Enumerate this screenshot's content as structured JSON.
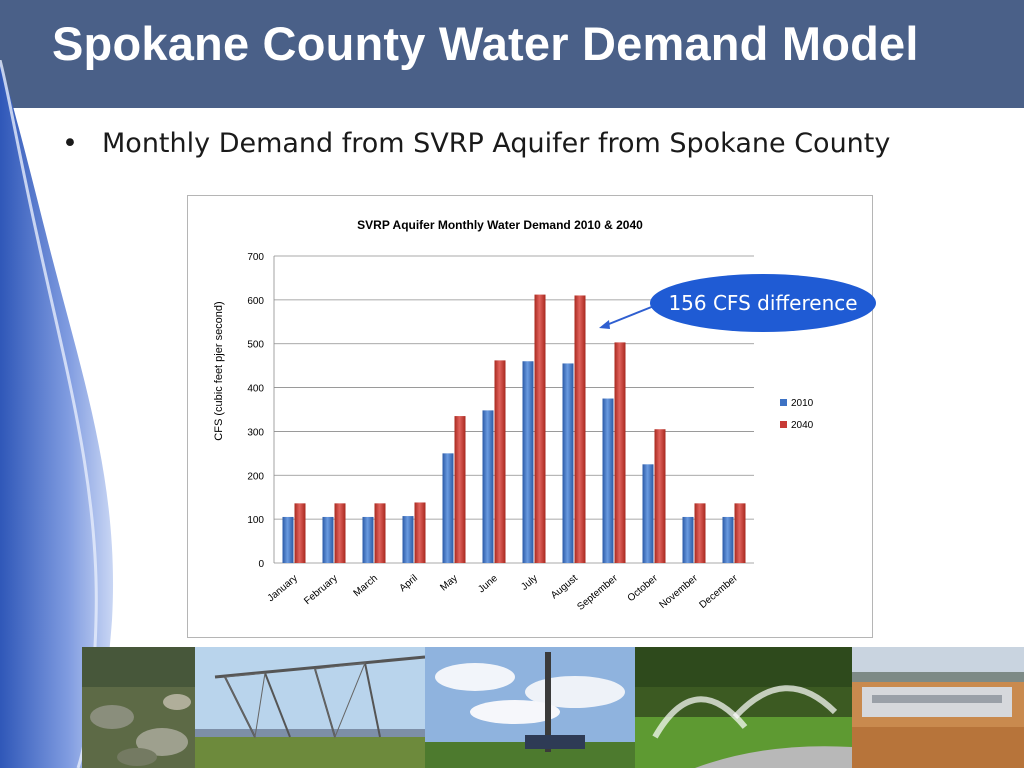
{
  "slide": {
    "title": "Spokane County Water Demand Model",
    "bullet_symbol": "•",
    "bullet_text": "Monthly Demand from SVRP Aquifer from Spokane County",
    "callout_text": "156 CFS difference",
    "colors": {
      "title_bar": "#4a6088",
      "callout": "#1f5bd4",
      "series_2010": "#3d72c4",
      "series_2040": "#c83a36"
    }
  },
  "chart_data": {
    "type": "bar",
    "title": "SVRP Aquifer Monthly Water Demand 2010 & 2040",
    "xlabel": "",
    "ylabel": "CFS (cubic feet pjer second)",
    "ylim": [
      0,
      700
    ],
    "yticks": [
      "0",
      "100",
      "200",
      "300",
      "400",
      "500",
      "600",
      "700"
    ],
    "grid": true,
    "legend_position": "right",
    "categories": [
      "January",
      "February",
      "March",
      "April",
      "May",
      "June",
      "July",
      "August",
      "September",
      "October",
      "November",
      "December"
    ],
    "series": [
      {
        "name": "2010",
        "values": [
          105,
          105,
          105,
          107,
          250,
          348,
          460,
          455,
          375,
          225,
          105,
          105
        ]
      },
      {
        "name": "2040",
        "values": [
          136,
          136,
          136,
          138,
          335,
          462,
          612,
          610,
          503,
          305,
          136,
          136
        ]
      }
    ]
  }
}
